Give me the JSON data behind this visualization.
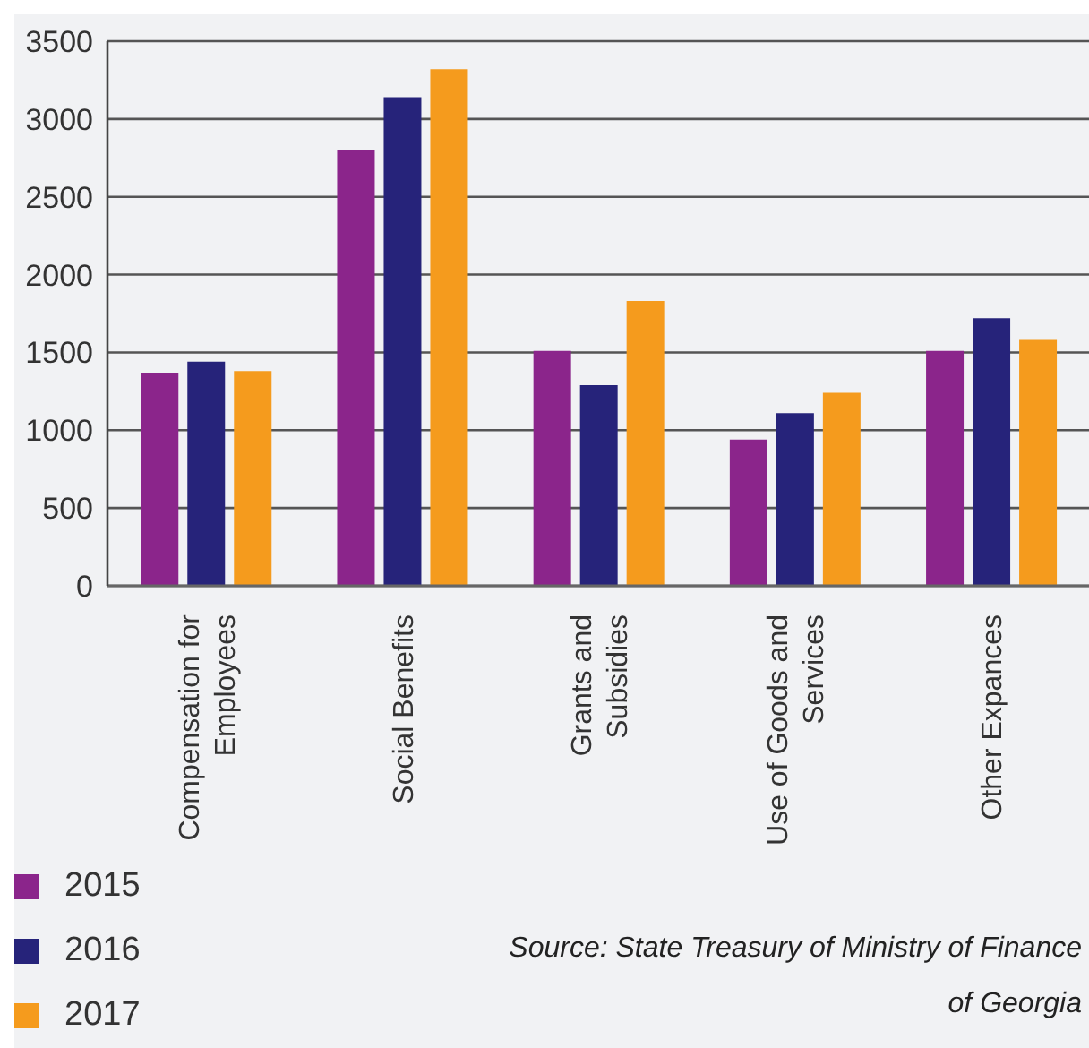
{
  "chart_data": {
    "type": "bar",
    "categories": [
      "Compensation for Employees",
      "Social Benefits",
      "Grants and Subsidies",
      "Use of Goods and Services",
      "Other Expances"
    ],
    "series": [
      {
        "name": "2015",
        "color": "#8b258b",
        "values": [
          1370,
          2800,
          1510,
          940,
          1510
        ]
      },
      {
        "name": "2016",
        "color": "#26237a",
        "values": [
          1440,
          3140,
          1290,
          1110,
          1720
        ]
      },
      {
        "name": "2017",
        "color": "#f59b1d",
        "values": [
          1380,
          3320,
          1830,
          1240,
          1580
        ]
      }
    ],
    "ylim": [
      0,
      3500
    ],
    "yticks": [
      0,
      500,
      1000,
      1500,
      2000,
      2500,
      3000,
      3500
    ],
    "grid": "y",
    "legend": "bottom left",
    "annotations": [
      "Source: State Treasury of Ministry of Finance of Georgia"
    ]
  }
}
